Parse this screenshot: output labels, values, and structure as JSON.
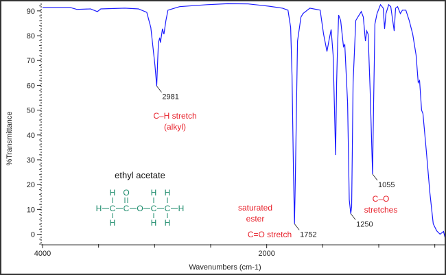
{
  "chart_data": {
    "type": "line",
    "xlabel": "Wavenumbers (cm-1)",
    "ylabel": "%Transmittance",
    "xlim": [
      4000,
      400
    ],
    "ylim": [
      -4,
      93
    ],
    "x_ticks": [
      {
        "value": 4000,
        "label": "4000"
      },
      {
        "value": 2000,
        "label": "2000"
      }
    ],
    "x_minor_ticks": [
      3500,
      3000,
      2500,
      1500,
      1000,
      500
    ],
    "y_ticks": [
      0,
      10,
      20,
      30,
      40,
      50,
      60,
      70,
      80,
      90
    ],
    "line_color": "#1a1aff",
    "series": [
      {
        "name": "ethyl acetate",
        "points": [
          [
            4000,
            91.4
          ],
          [
            3755,
            91.4
          ],
          [
            3694,
            90.6
          ],
          [
            3572,
            90.8
          ],
          [
            3511,
            89.7
          ],
          [
            3480,
            90.8
          ],
          [
            3266,
            91.1
          ],
          [
            3144,
            90.8
          ],
          [
            3070,
            89.4
          ],
          [
            3034,
            83.3
          ],
          [
            2997,
            68.1
          ],
          [
            2981,
            59.7
          ],
          [
            2973,
            69.4
          ],
          [
            2966,
            77.2
          ],
          [
            2954,
            79.2
          ],
          [
            2948,
            77.2
          ],
          [
            2930,
            82.8
          ],
          [
            2917,
            80.6
          ],
          [
            2899,
            86.1
          ],
          [
            2881,
            90.3
          ],
          [
            2777,
            91.7
          ],
          [
            2532,
            92.5
          ],
          [
            2349,
            92.9
          ],
          [
            2165,
            92.8
          ],
          [
            1982,
            91.9
          ],
          [
            1859,
            91.1
          ],
          [
            1810,
            90.3
          ],
          [
            1786,
            83.3
          ],
          [
            1774,
            63.9
          ],
          [
            1761,
            25
          ],
          [
            1752,
            4.2
          ],
          [
            1743,
            25
          ],
          [
            1725,
            77.8
          ],
          [
            1694,
            87.5
          ],
          [
            1676,
            88.9
          ],
          [
            1615,
            91.1
          ],
          [
            1523,
            90.3
          ],
          [
            1492,
            80.6
          ],
          [
            1474,
            76.4
          ],
          [
            1462,
            73.6
          ],
          [
            1443,
            78.3
          ],
          [
            1425,
            82.5
          ],
          [
            1407,
            72.2
          ],
          [
            1395,
            50
          ],
          [
            1385,
            31.9
          ],
          [
            1376,
            61.1
          ],
          [
            1370,
            72.2
          ],
          [
            1358,
            88.3
          ],
          [
            1340,
            86.1
          ],
          [
            1315,
            75.6
          ],
          [
            1303,
            76.4
          ],
          [
            1278,
            52.8
          ],
          [
            1263,
            13.9
          ],
          [
            1250,
            8.3
          ],
          [
            1242,
            11.1
          ],
          [
            1229,
            61.1
          ],
          [
            1205,
            86.1
          ],
          [
            1187,
            87.5
          ],
          [
            1156,
            89.7
          ],
          [
            1138,
            87.5
          ],
          [
            1119,
            77.8
          ],
          [
            1107,
            81.9
          ],
          [
            1095,
            80.6
          ],
          [
            1077,
            58.3
          ],
          [
            1055,
            24.2
          ],
          [
            1046,
            52.8
          ],
          [
            1034,
            84.7
          ],
          [
            1015,
            88.9
          ],
          [
            985,
            92.5
          ],
          [
            960,
            91.1
          ],
          [
            948,
            82.8
          ],
          [
            936,
            88.9
          ],
          [
            911,
            92.5
          ],
          [
            893,
            91.7
          ],
          [
            862,
            81.9
          ],
          [
            850,
            91.1
          ],
          [
            832,
            91.7
          ],
          [
            807,
            88.9
          ],
          [
            789,
            90.3
          ],
          [
            758,
            90.3
          ],
          [
            728,
            86.1
          ],
          [
            697,
            80.6
          ],
          [
            667,
            72.2
          ],
          [
            648,
            61.1
          ],
          [
            636,
            61.9
          ],
          [
            618,
            50
          ],
          [
            606,
            48.6
          ],
          [
            575,
            33.3
          ],
          [
            544,
            16.7
          ],
          [
            514,
            4.2
          ],
          [
            483,
            1.4
          ],
          [
            453,
            0
          ],
          [
            422,
            1.1
          ],
          [
            404,
            -2.2
          ]
        ]
      }
    ],
    "peak_labels": [
      {
        "x": 2981,
        "y": 59.7,
        "label": "2981"
      },
      {
        "x": 1752,
        "y": 4.2,
        "label": "1752"
      },
      {
        "x": 1250,
        "y": 8.3,
        "label": "1250"
      },
      {
        "x": 1055,
        "y": 24.2,
        "label": "1055"
      }
    ],
    "annotations": {
      "ch_line1": "C–H stretch",
      "ch_line2": "(alkyl)",
      "ester_line1": "saturated",
      "ester_line2": "ester",
      "co_double": "C=O stretch",
      "co_line1": "C–O",
      "co_line2": "stretches"
    },
    "compound_name": "ethyl acetate",
    "structure": {
      "H": "H",
      "C": "C",
      "O": "O",
      "bond_h": "–",
      "bond_v": "|",
      "bond_double": "||"
    }
  }
}
